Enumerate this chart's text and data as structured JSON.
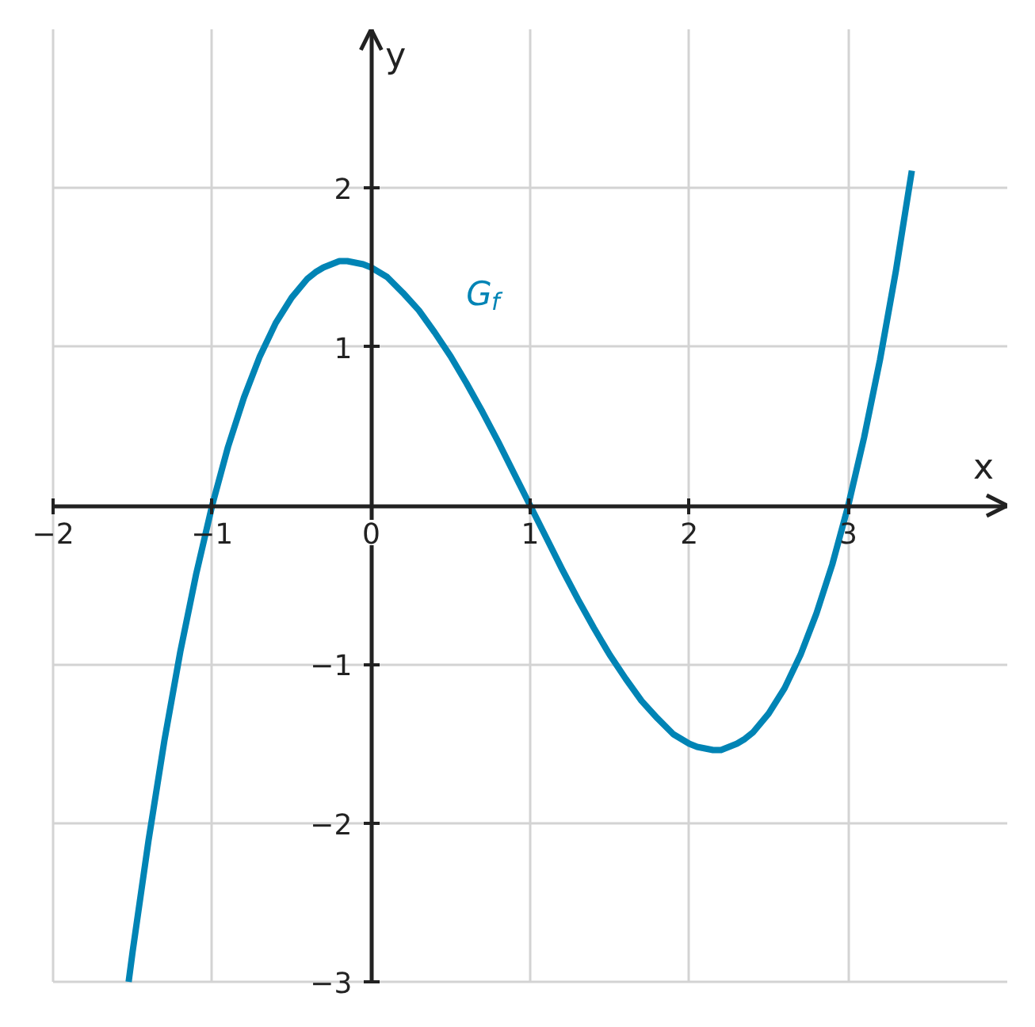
{
  "chart_data": {
    "type": "line",
    "xlabel": "x",
    "ylabel": "y",
    "xlim": [
      -2,
      4
    ],
    "ylim": [
      -3,
      3
    ],
    "xticks": [
      {
        "value": -2,
        "label": "−2"
      },
      {
        "value": -1,
        "label": "−1"
      },
      {
        "value": 0,
        "label": "0"
      },
      1,
      2,
      3
    ],
    "yticks": [
      {
        "value": -3,
        "label": "−3"
      },
      {
        "value": -2,
        "label": "−2"
      },
      {
        "value": -1,
        "label": "−1"
      },
      {
        "value": 0,
        "label": null
      },
      1,
      2
    ],
    "grid": true,
    "x": [
      -1.525,
      -1.5,
      -1.4,
      -1.3,
      -1.2,
      -1.1,
      -1.0,
      -0.9,
      -0.8,
      -0.7,
      -0.6,
      -0.5,
      -0.4,
      -0.35,
      -0.3,
      -0.25,
      -0.2,
      -0.15,
      -0.1,
      -0.05,
      0,
      0.05,
      0.1,
      0.2,
      0.3,
      0.4,
      0.5,
      0.6,
      0.7,
      0.8,
      0.9,
      1.0,
      1.1,
      1.2,
      1.3,
      1.4,
      1.5,
      1.6,
      1.7,
      1.8,
      1.9,
      1.95,
      2.0,
      2.05,
      2.1,
      2.15,
      2.2,
      2.25,
      2.3,
      2.35,
      2.4,
      2.5,
      2.6,
      2.7,
      2.8,
      2.9,
      3.0,
      3.1,
      3.2,
      3.3,
      3.4
    ],
    "series": [
      {
        "name": "G$_{f}$",
        "color": "#0084b5",
        "values": [
          -3.0,
          -2.81,
          -2.11,
          -1.48,
          -0.92,
          -0.43,
          0,
          0.37,
          0.68,
          0.94,
          1.15,
          1.31,
          1.43,
          1.47,
          1.5,
          1.52,
          1.54,
          1.54,
          1.53,
          1.52,
          1.5,
          1.47,
          1.44,
          1.34,
          1.23,
          1.09,
          0.94,
          0.77,
          0.59,
          0.4,
          0.2,
          0,
          -0.2,
          -0.4,
          -0.59,
          -0.77,
          -0.94,
          -1.09,
          -1.23,
          -1.34,
          -1.44,
          -1.47,
          -1.5,
          -1.52,
          -1.53,
          -1.54,
          -1.54,
          -1.52,
          -1.5,
          -1.47,
          -1.43,
          -1.31,
          -1.15,
          -0.94,
          -0.68,
          -0.37,
          0,
          0.43,
          0.92,
          1.48,
          2.11
        ]
      }
    ]
  }
}
